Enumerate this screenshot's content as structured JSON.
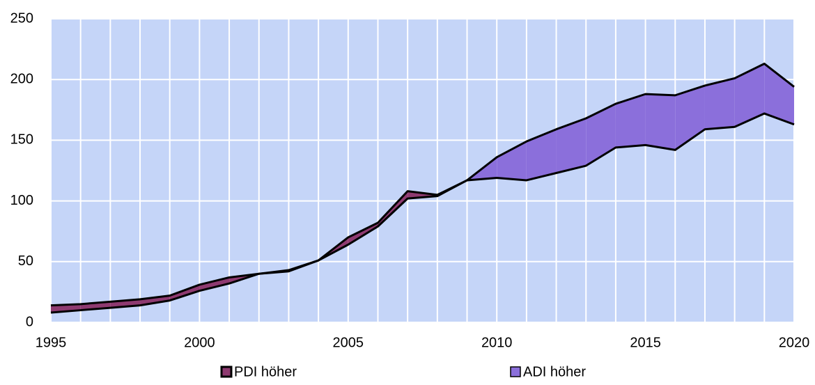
{
  "chart_data": {
    "type": "area-difference",
    "x": [
      1995,
      1996,
      1997,
      1998,
      1999,
      2000,
      2001,
      2002,
      2003,
      2004,
      2005,
      2006,
      2007,
      2008,
      2009,
      2010,
      2011,
      2012,
      2013,
      2014,
      2015,
      2016,
      2017,
      2018,
      2019,
      2020
    ],
    "series": [
      {
        "name": "PDI höher",
        "color": "#8e3a70",
        "values": [
          14,
          15,
          17,
          19,
          22,
          31,
          37,
          40,
          43,
          51,
          70,
          82,
          108,
          105,
          117,
          119,
          117,
          123,
          129,
          144,
          146,
          142,
          159,
          161,
          172,
          163
        ]
      },
      {
        "name": "ADI höher",
        "color": "#8b6fdb",
        "values": [
          8,
          10,
          12,
          14,
          18,
          26,
          32,
          40,
          42,
          51,
          64,
          79,
          102,
          104,
          117,
          136,
          149,
          159,
          168,
          180,
          188,
          187,
          195,
          201,
          213,
          194
        ]
      }
    ],
    "xlim": [
      1995,
      2020
    ],
    "xticks": [
      1995,
      2000,
      2005,
      2010,
      2015,
      2020
    ],
    "ylim": [
      0,
      250
    ],
    "yticks": [
      0,
      50,
      100,
      150,
      200,
      250
    ],
    "grid": true,
    "legend": "bottom"
  }
}
